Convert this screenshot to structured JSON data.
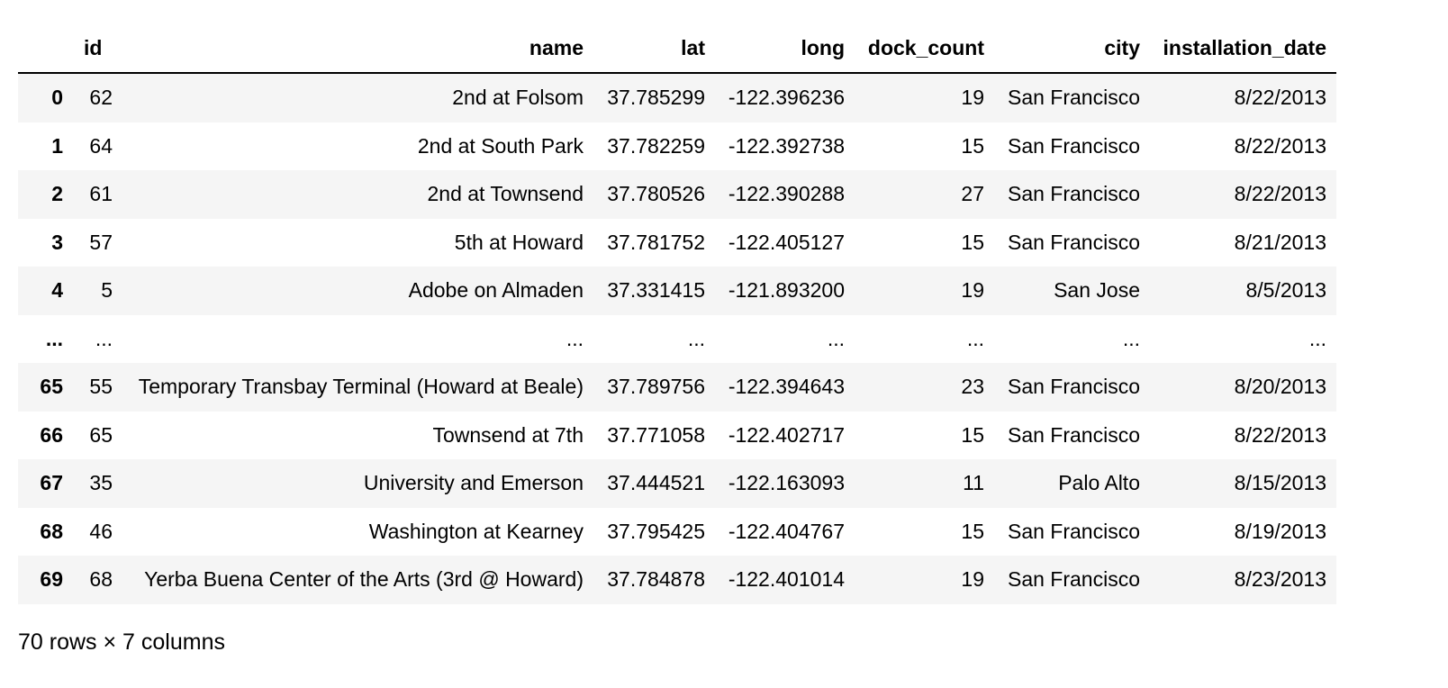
{
  "table": {
    "columns": [
      "",
      "id",
      "name",
      "lat",
      "long",
      "dock_count",
      "city",
      "installation_date"
    ],
    "rows": [
      [
        "0",
        "62",
        "2nd at Folsom",
        "37.785299",
        "-122.396236",
        "19",
        "San Francisco",
        "8/22/2013"
      ],
      [
        "1",
        "64",
        "2nd at South Park",
        "37.782259",
        "-122.392738",
        "15",
        "San Francisco",
        "8/22/2013"
      ],
      [
        "2",
        "61",
        "2nd at Townsend",
        "37.780526",
        "-122.390288",
        "27",
        "San Francisco",
        "8/22/2013"
      ],
      [
        "3",
        "57",
        "5th at Howard",
        "37.781752",
        "-122.405127",
        "15",
        "San Francisco",
        "8/21/2013"
      ],
      [
        "4",
        "5",
        "Adobe on Almaden",
        "37.331415",
        "-121.893200",
        "19",
        "San Jose",
        "8/5/2013"
      ],
      [
        "...",
        "...",
        "...",
        "...",
        "...",
        "...",
        "...",
        "..."
      ],
      [
        "65",
        "55",
        "Temporary Transbay Terminal (Howard at Beale)",
        "37.789756",
        "-122.394643",
        "23",
        "San Francisco",
        "8/20/2013"
      ],
      [
        "66",
        "65",
        "Townsend at 7th",
        "37.771058",
        "-122.402717",
        "15",
        "San Francisco",
        "8/22/2013"
      ],
      [
        "67",
        "35",
        "University and Emerson",
        "37.444521",
        "-122.163093",
        "11",
        "Palo Alto",
        "8/15/2013"
      ],
      [
        "68",
        "46",
        "Washington at Kearney",
        "37.795425",
        "-122.404767",
        "15",
        "San Francisco",
        "8/19/2013"
      ],
      [
        "69",
        "68",
        "Yerba Buena Center of the Arts (3rd @ Howard)",
        "37.784878",
        "-122.401014",
        "19",
        "San Francisco",
        "8/23/2013"
      ]
    ]
  },
  "footer": {
    "shape_text": "70 rows × 7 columns"
  }
}
